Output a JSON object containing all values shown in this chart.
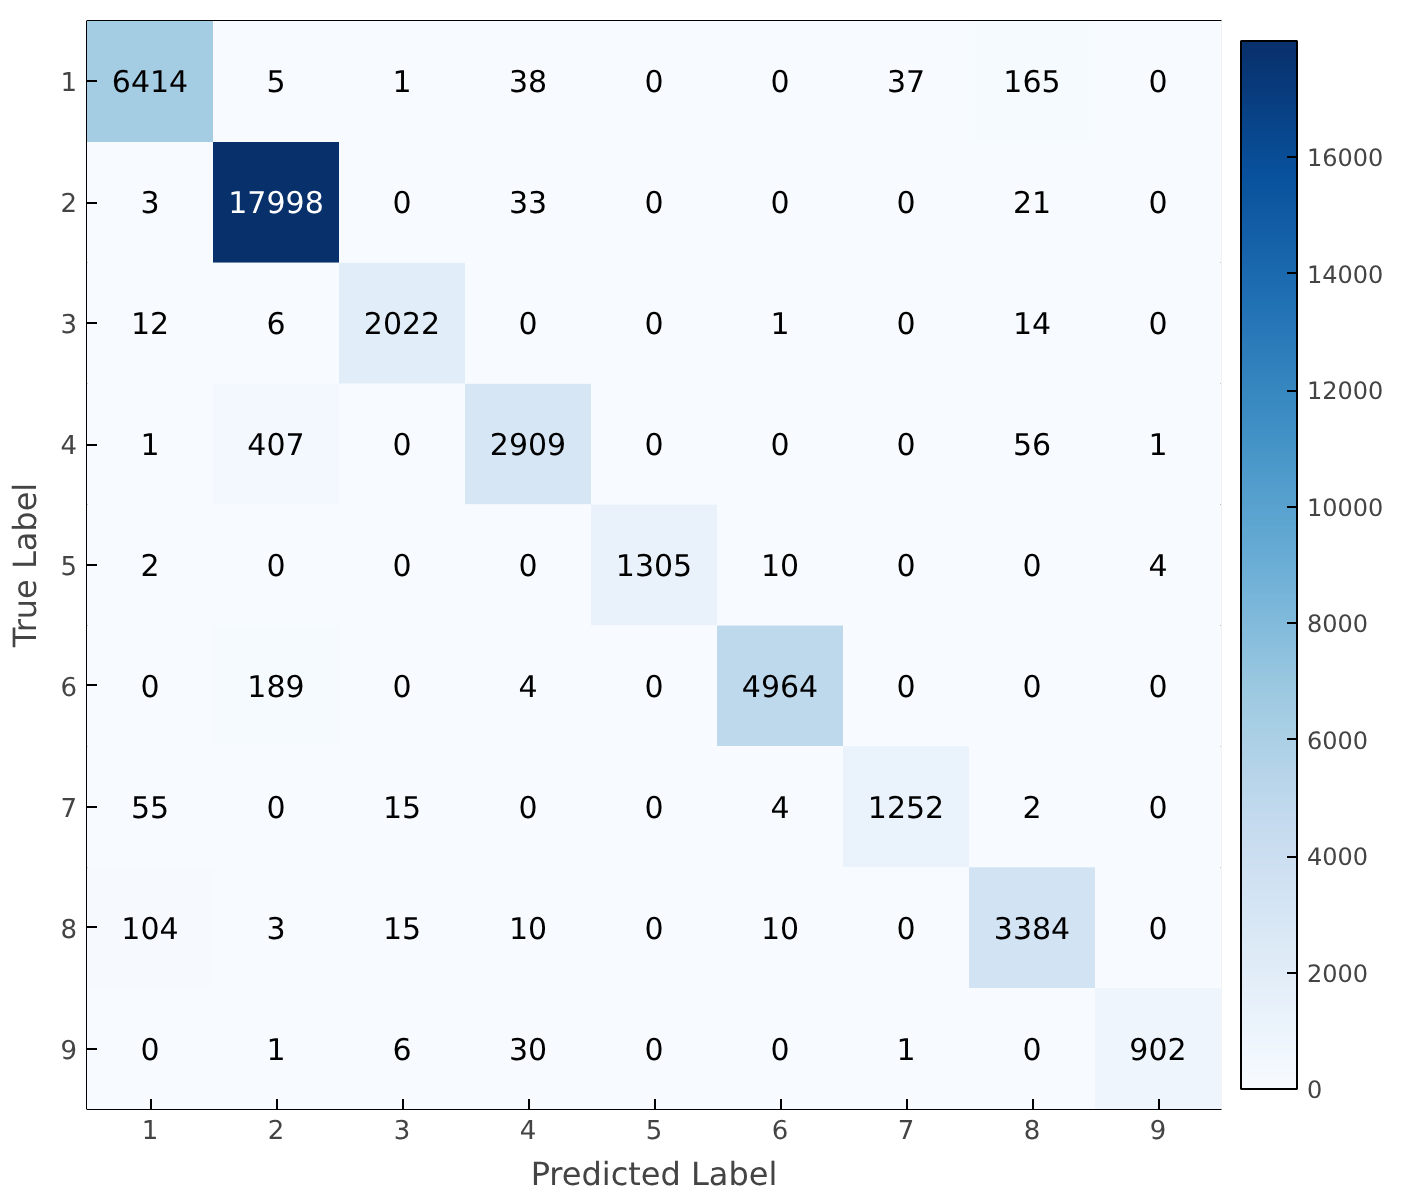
{
  "chart_data": {
    "type": "heatmap",
    "xlabel": "Predicted Label",
    "ylabel": "True Label",
    "categories": [
      "1",
      "2",
      "3",
      "4",
      "5",
      "6",
      "7",
      "8",
      "9"
    ],
    "y_categories": [
      "1",
      "2",
      "3",
      "4",
      "5",
      "6",
      "7",
      "8",
      "9"
    ],
    "cells": [
      [
        6414,
        5,
        1,
        38,
        0,
        0,
        37,
        165,
        0
      ],
      [
        3,
        17998,
        0,
        33,
        0,
        0,
        0,
        21,
        0
      ],
      [
        12,
        6,
        2022,
        0,
        0,
        1,
        0,
        14,
        0
      ],
      [
        1,
        407,
        0,
        2909,
        0,
        0,
        0,
        56,
        1
      ],
      [
        2,
        0,
        0,
        0,
        1305,
        10,
        0,
        0,
        4
      ],
      [
        0,
        189,
        0,
        4,
        0,
        4964,
        0,
        0,
        0
      ],
      [
        55,
        0,
        15,
        0,
        0,
        4,
        1252,
        2,
        0
      ],
      [
        104,
        3,
        15,
        10,
        0,
        10,
        0,
        3384,
        0
      ],
      [
        0,
        1,
        6,
        30,
        0,
        0,
        1,
        0,
        902
      ]
    ],
    "clim": [
      0,
      17998
    ],
    "cticks": [
      0,
      2000,
      4000,
      6000,
      8000,
      10000,
      12000,
      14000,
      16000
    ],
    "data_labels": true
  }
}
